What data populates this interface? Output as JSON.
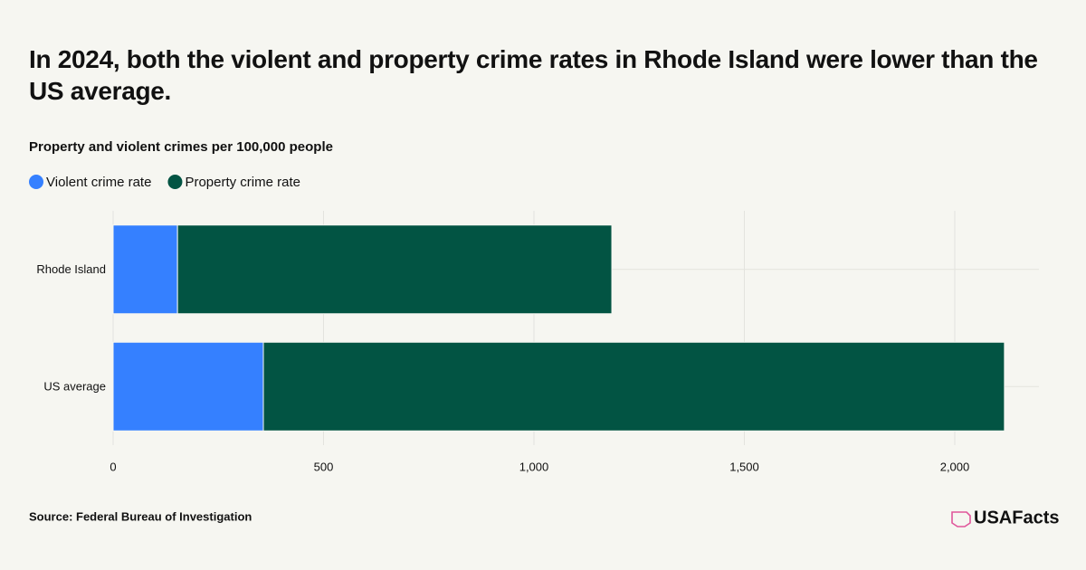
{
  "chart_data": {
    "type": "stacked-bar-horizontal",
    "title": "In 2024, both the violent and property crime rates in Rhode Island were lower than the US average.",
    "subtitle": "Property and violent crimes per 100,000 people",
    "categories": [
      "Rhode Island",
      "US average"
    ],
    "series": [
      {
        "name": "Violent crime rate",
        "color": "#3580ff",
        "values": [
          153,
          357
        ]
      },
      {
        "name": "Property crime rate",
        "color": "#025443",
        "values": [
          1032,
          1761
        ]
      }
    ],
    "xlim": [
      0,
      2200
    ],
    "xticks": [
      0,
      500,
      {
        "value": 1000,
        "label": "1,000"
      },
      {
        "value": 1500,
        "label": "1,500"
      },
      {
        "value": 2000,
        "label": "2,000"
      }
    ],
    "grid": true,
    "source": "Source: Federal Bureau of Investigation",
    "brand": "USAFacts"
  }
}
